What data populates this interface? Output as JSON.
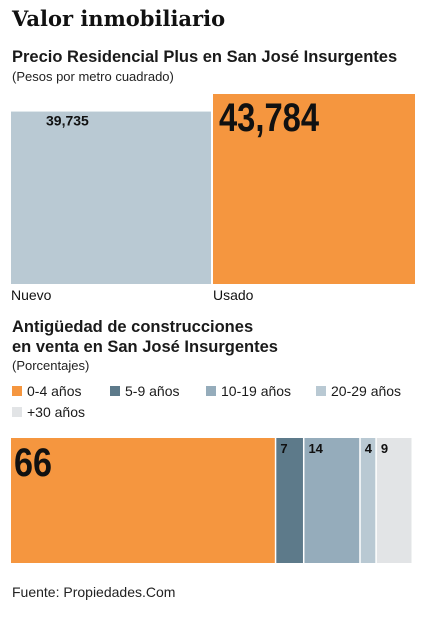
{
  "page_title": "Valor inmobiliario",
  "source": "Fuente: Propiedades.Com",
  "chart_data": [
    {
      "type": "bar",
      "title": "Precio Residencial Plus en San José Insurgentes",
      "subtitle": "(Pesos por metro cuadrado)",
      "categories": [
        "Nuevo",
        "Usado"
      ],
      "values": [
        39735,
        43784
      ],
      "value_labels": [
        "39,735",
        "43,784"
      ],
      "colors": [
        "#b9c9d3",
        "#f5963f"
      ],
      "ylim": [
        0,
        43784
      ],
      "grid": false
    },
    {
      "type": "bar",
      "stacked": true,
      "title_lines": [
        "Antigüedad de construcciones",
        "en venta en San José Insurgentes"
      ],
      "subtitle": "(Porcentajes)",
      "categories": [
        "0-4 años",
        "5-9 años",
        "10-19 años",
        "20-29 años",
        "+30 años"
      ],
      "values": [
        66,
        7,
        14,
        4,
        9
      ],
      "value_labels": [
        "66",
        "7",
        "14",
        "4",
        "9"
      ],
      "colors": [
        "#f5963f",
        "#5d7a8a",
        "#95acbb",
        "#b9c9d3",
        "#e2e4e6"
      ],
      "legend_position": "top",
      "grid": false
    }
  ]
}
